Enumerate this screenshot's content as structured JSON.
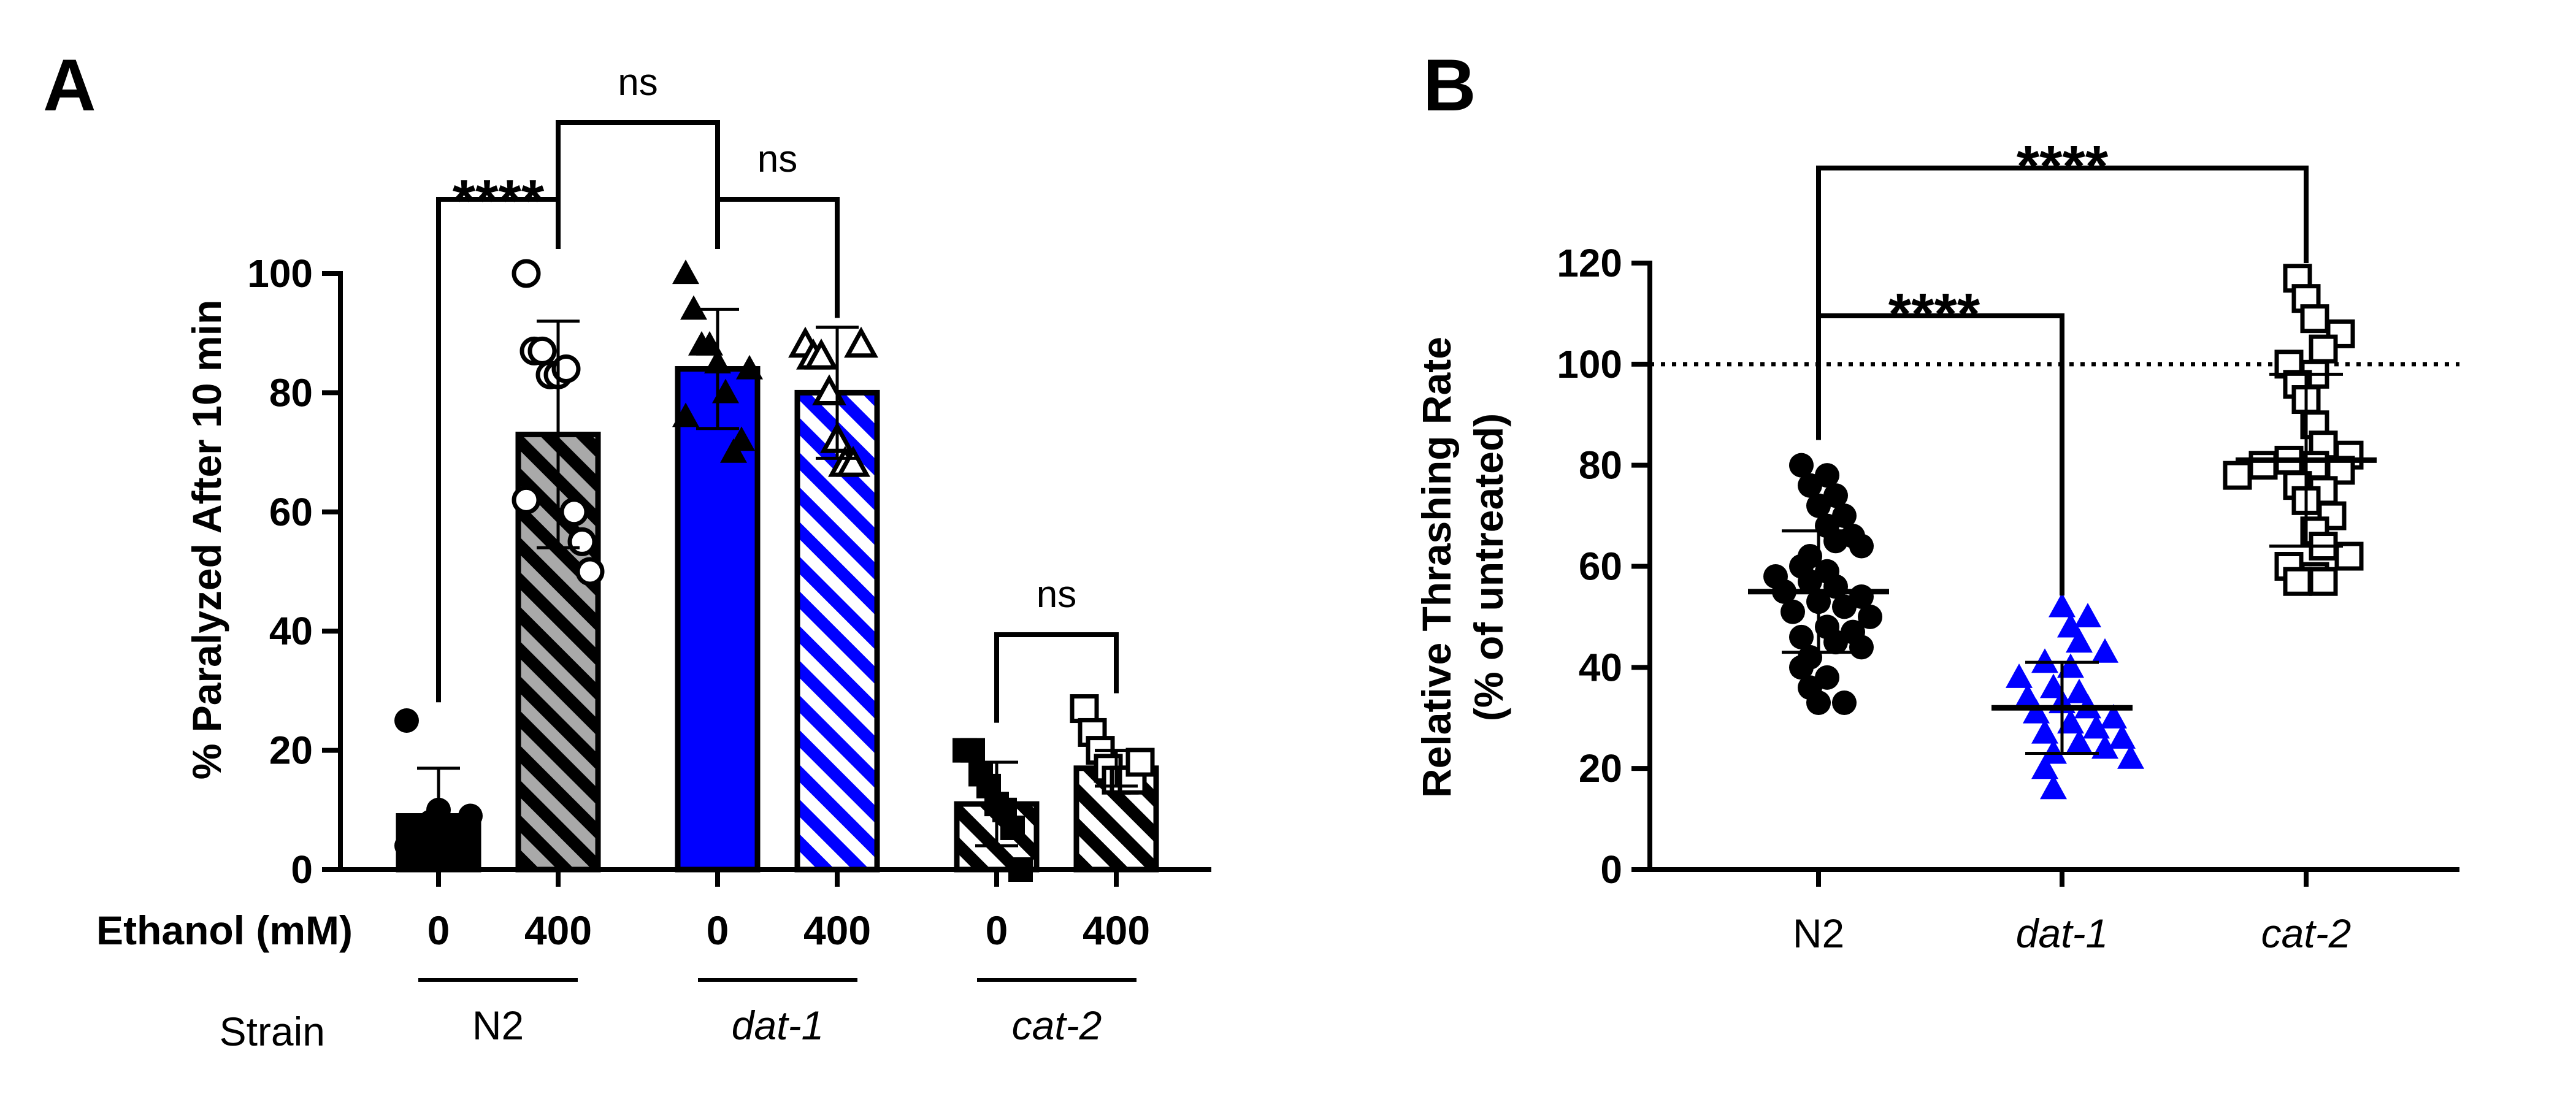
{
  "chart_data": [
    {
      "panel": "A",
      "type": "bar",
      "ylabel": "% Paralyzed After 10 min",
      "ylim": [
        0,
        100
      ],
      "yticks": [
        "0",
        "20",
        "40",
        "60",
        "80",
        "100"
      ],
      "xgroup_label": "Ethanol (mM)",
      "strain_label": "Strain",
      "bars": [
        {
          "strain": "N2",
          "ethanol": "0",
          "mean": 9,
          "sd": 8,
          "fill": "#000000",
          "pattern": "solid",
          "marker": "circle-filled",
          "points": [
            4,
            3,
            6,
            8,
            10,
            7,
            5,
            2,
            9,
            25
          ]
        },
        {
          "strain": "N2",
          "ethanol": "400",
          "mean": 73,
          "sd": 19,
          "fill": "#a9a9a9",
          "pattern": "hatch",
          "marker": "circle-open",
          "points": [
            100,
            87,
            87,
            83,
            83,
            84,
            60,
            55,
            50,
            62
          ]
        },
        {
          "strain": "dat-1",
          "ethanol": "0",
          "mean": 84,
          "sd": 10,
          "fill": "#0000ff",
          "pattern": "solid",
          "marker": "triangle-filled",
          "points": [
            100,
            94,
            88,
            88,
            85,
            80,
            70,
            72,
            84,
            76
          ]
        },
        {
          "strain": "dat-1",
          "ethanol": "400",
          "mean": 80,
          "sd": 11,
          "fill": "#0000ff",
          "pattern": "hatch",
          "marker": "triangle-open",
          "points": [
            88,
            86,
            86,
            80,
            72,
            68,
            68,
            88
          ]
        },
        {
          "strain": "cat-2",
          "ethanol": "0",
          "mean": 11,
          "sd": 7,
          "fill": "#ffffff",
          "pattern": "hatch",
          "marker": "square-filled",
          "points": [
            20,
            20,
            16,
            14,
            11,
            10,
            7,
            0
          ]
        },
        {
          "strain": "cat-2",
          "ethanol": "400",
          "mean": 17,
          "sd": 3,
          "fill": "#ffffff",
          "pattern": "hatch",
          "marker": "square-open",
          "points": [
            27,
            23,
            20,
            17,
            15,
            15,
            15,
            18
          ]
        }
      ],
      "strains": [
        "N2",
        "dat-1",
        "cat-2"
      ],
      "significance": [
        {
          "from": 0,
          "to": 1,
          "label": "****"
        },
        {
          "from": 1,
          "to": 2,
          "label": "ns"
        },
        {
          "from": 2,
          "to": 3,
          "label": "ns"
        },
        {
          "from": 4,
          "to": 5,
          "label": "ns"
        }
      ]
    },
    {
      "panel": "B",
      "type": "scatter",
      "ylabel": "Relative Thrashing Rate",
      "ylabel2": "(% of untreated)",
      "ylim": [
        0,
        120
      ],
      "yticks": [
        "0",
        "20",
        "40",
        "60",
        "80",
        "100",
        "120"
      ],
      "reference_line": 100,
      "categories": [
        "N2",
        "dat-1",
        "cat-2"
      ],
      "groups": [
        {
          "name": "N2",
          "mean": 55,
          "sd": 12,
          "color": "#000000",
          "marker": "circle-filled",
          "points": [
            80,
            78,
            76,
            74,
            72,
            70,
            68,
            66,
            65,
            64,
            62,
            60,
            59,
            58,
            57,
            56,
            55,
            54,
            53,
            52,
            51,
            50,
            48,
            47,
            46,
            45,
            44,
            42,
            40,
            38,
            36,
            33,
            33
          ]
        },
        {
          "name": "dat-1",
          "mean": 32,
          "sd": 9,
          "color": "#0000ff",
          "marker": "triangle-filled",
          "points": [
            52,
            50,
            48,
            45,
            43,
            41,
            40,
            38,
            36,
            35,
            34,
            33,
            32,
            31,
            30,
            29,
            28,
            27,
            26,
            25,
            24,
            23,
            22,
            20,
            16
          ]
        },
        {
          "name": "cat-2",
          "mean": 81,
          "sd": 17,
          "color": "#000000",
          "marker": "square-open",
          "points": [
            117,
            113,
            109,
            106,
            103,
            100,
            98,
            96,
            93,
            88,
            84,
            82,
            81,
            80,
            80,
            79,
            78,
            76,
            75,
            73,
            70,
            67,
            64,
            62,
            60,
            58,
            57,
            57
          ]
        }
      ],
      "significance": [
        {
          "from": 0,
          "to": 2,
          "label": "****",
          "level": "upper"
        },
        {
          "from": 0,
          "to": 1,
          "label": "****",
          "level": "lower"
        }
      ]
    }
  ],
  "panels": {
    "a_letter": "A",
    "b_letter": "B"
  }
}
